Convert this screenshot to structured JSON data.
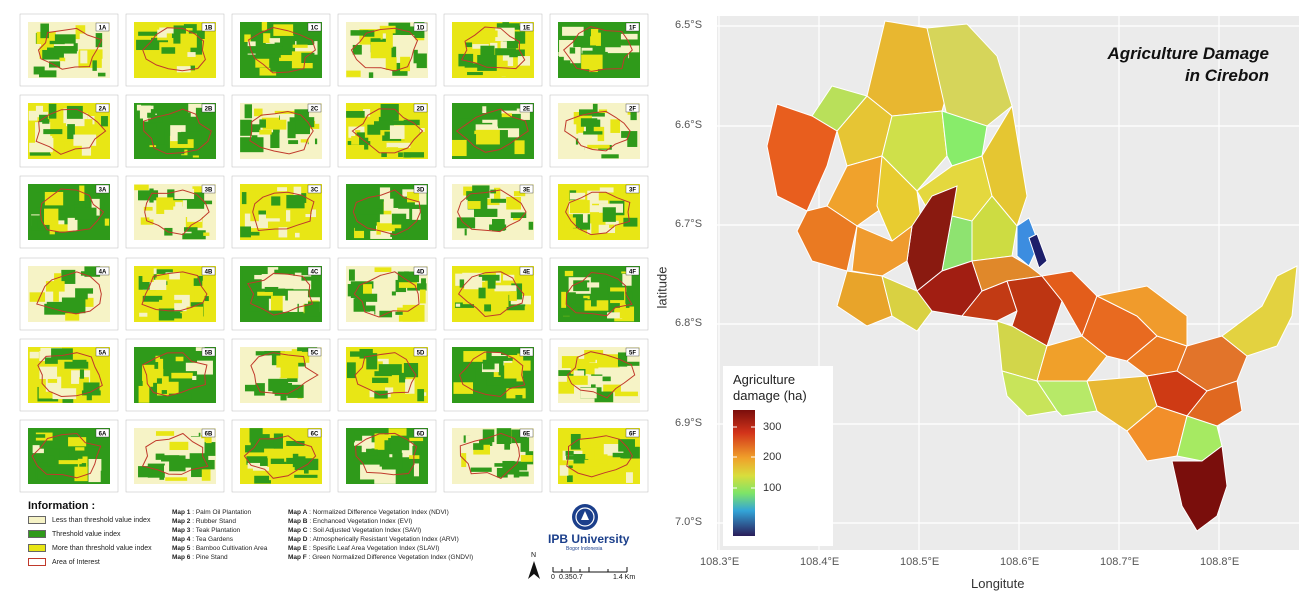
{
  "panels": {
    "letters": [
      "A",
      "B",
      "C",
      "D",
      "E",
      "F"
    ],
    "tile_labels": [
      [
        "1A",
        "1B",
        "1C",
        "1D",
        "1E",
        "1F"
      ],
      [
        "2A",
        "2B",
        "2C",
        "2D",
        "2E",
        "2F"
      ],
      [
        "3A",
        "3B",
        "3C",
        "3D",
        "3E",
        "3F"
      ],
      [
        "4A",
        "4B",
        "4C",
        "4D",
        "4E",
        "4F"
      ],
      [
        "5A",
        "5B",
        "5C",
        "5D",
        "5E",
        "5F"
      ],
      [
        "6A",
        "6B",
        "6C",
        "6D",
        "6E",
        "6F"
      ]
    ],
    "colors": {
      "less": "#f6f3c6",
      "threshold": "#2f9a1a",
      "more": "#e8e615",
      "aoi": "#c0392b"
    }
  },
  "legend": {
    "title": "Information :",
    "items": [
      {
        "label": "Less than threshold value index",
        "color": "#f6f3c6"
      },
      {
        "label": "Threshold value index",
        "color": "#2f9a1a"
      },
      {
        "label": "More than threshold value index",
        "color": "#e8e615"
      },
      {
        "label": "Area of Interest",
        "color": "#c0392b"
      }
    ]
  },
  "maps": [
    {
      "key": "Map 1",
      "value": ": Palm Oil Plantation"
    },
    {
      "key": "Map 2",
      "value": ": Rubber Stand"
    },
    {
      "key": "Map 3",
      "value": ": Teak Plantation"
    },
    {
      "key": "Map 4",
      "value": ": Tea Gardens"
    },
    {
      "key": "Map 5",
      "value": ": Bamboo Cultivation Area"
    },
    {
      "key": "Map 6",
      "value": ": Pine Stand"
    }
  ],
  "indices": [
    {
      "key": "Map A",
      "value": ": Normalized Difference Vegetation Index (NDVI)"
    },
    {
      "key": "Map B",
      "value": ": Enchanced Vegetation Index (EVI)"
    },
    {
      "key": "Map C",
      "value": ": Soil Adjusted Vegetation Index (SAVI)"
    },
    {
      "key": "Map D",
      "value": ": Atmospherically Resistant Vegetation Index (ARVI)"
    },
    {
      "key": "Map E",
      "value": ": Spesific Leaf Area Vegetation Index (SLAVI)"
    },
    {
      "key": "Map F",
      "value": ": Green Normalized Difference Vegetation Index (GNDVI)"
    }
  ],
  "logo": {
    "name": "IPB University",
    "sub": "Bogor Indonesia"
  },
  "scalebar": {
    "north": "N",
    "labels": [
      "0",
      "0.35",
      "0.7",
      "1.4 Km"
    ]
  },
  "choropleth": {
    "title_line1": "Agriculture Damage",
    "title_line2": "in Cirebon",
    "xlabel": "Longitute",
    "ylabel": "latitude",
    "x_ticks": [
      "108.3°E",
      "108.4°E",
      "108.5°E",
      "108.6°E",
      "108.7°E",
      "108.8°E"
    ],
    "y_ticks": [
      "6.5°S",
      "6.6°S",
      "6.7°S",
      "6.8°S",
      "6.9°S",
      "7.0°S"
    ],
    "legend_title_1": "Agriculture",
    "legend_title_2": "damage (ha)",
    "legend_ticks": [
      "300",
      "200",
      "100"
    ],
    "legend_range": [
      0,
      340
    ],
    "background": "#ebebeb"
  }
}
